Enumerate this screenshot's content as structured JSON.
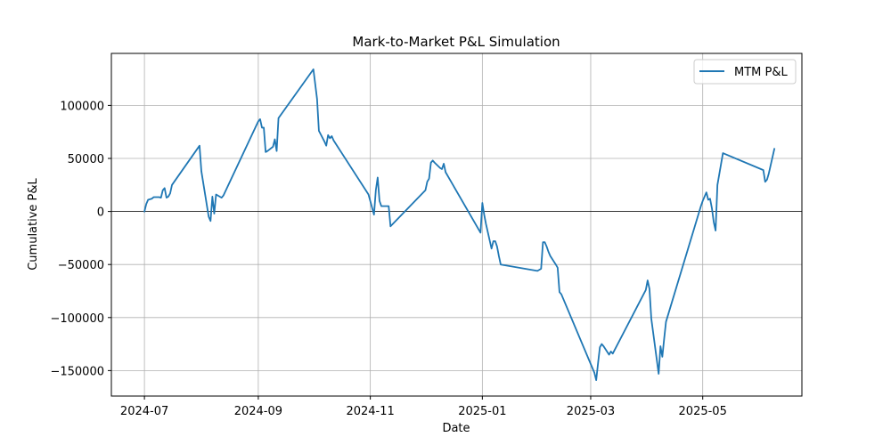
{
  "chart_data": {
    "type": "line",
    "title": "Mark-to-Market P&L Simulation",
    "xlabel": "Date",
    "ylabel": "Cumulative P&L",
    "x_axis_type": "date",
    "xlim": [
      "2024-06-13",
      "2025-06-24"
    ],
    "ylim": [
      -174000,
      149000
    ],
    "x_ticks": [
      {
        "value": "2024-07-01",
        "label": "2024-07"
      },
      {
        "value": "2024-09-01",
        "label": "2024-09"
      },
      {
        "value": "2024-11-01",
        "label": "2024-11"
      },
      {
        "value": "2025-01-01",
        "label": "2025-01"
      },
      {
        "value": "2025-03-01",
        "label": "2025-03"
      },
      {
        "value": "2025-05-01",
        "label": "2025-05"
      }
    ],
    "y_ticks": [
      {
        "value": 100000,
        "label": "100000"
      },
      {
        "value": 50000,
        "label": "50000"
      },
      {
        "value": 0,
        "label": "0"
      },
      {
        "value": -50000,
        "label": "−50000"
      },
      {
        "value": -100000,
        "label": "−100000"
      },
      {
        "value": -150000,
        "label": "−150000"
      }
    ],
    "grid": true,
    "zero_line": true,
    "legend_position": "top-right",
    "series": [
      {
        "name": "MTM P&L",
        "color": "#1f77b4",
        "points": [
          [
            "2024-07-01",
            0
          ],
          [
            "2024-07-02",
            7000
          ],
          [
            "2024-07-03",
            11000
          ],
          [
            "2024-07-05",
            12000
          ],
          [
            "2024-07-06",
            13500
          ],
          [
            "2024-07-08",
            13500
          ],
          [
            "2024-07-09",
            13500
          ],
          [
            "2024-07-10",
            13000
          ],
          [
            "2024-07-11",
            20000
          ],
          [
            "2024-07-12",
            22000
          ],
          [
            "2024-07-13",
            13000
          ],
          [
            "2024-07-14",
            14000
          ],
          [
            "2024-07-15",
            17000
          ],
          [
            "2024-07-16",
            25000
          ],
          [
            "2024-07-31",
            62000
          ],
          [
            "2024-08-01",
            38000
          ],
          [
            "2024-08-05",
            -5000
          ],
          [
            "2024-08-06",
            -9000
          ],
          [
            "2024-08-07",
            14000
          ],
          [
            "2024-08-08",
            -2000
          ],
          [
            "2024-08-09",
            16000
          ],
          [
            "2024-08-12",
            13000
          ],
          [
            "2024-08-13",
            15000
          ],
          [
            "2024-09-01",
            85000
          ],
          [
            "2024-09-02",
            87000
          ],
          [
            "2024-09-03",
            79000
          ],
          [
            "2024-09-04",
            79000
          ],
          [
            "2024-09-05",
            56000
          ],
          [
            "2024-09-06",
            57000
          ],
          [
            "2024-09-09",
            61000
          ],
          [
            "2024-09-10",
            68000
          ],
          [
            "2024-09-11",
            57000
          ],
          [
            "2024-09-12",
            88000
          ],
          [
            "2024-10-01",
            134000
          ],
          [
            "2024-10-03",
            106000
          ],
          [
            "2024-10-04",
            76000
          ],
          [
            "2024-10-07",
            66000
          ],
          [
            "2024-10-08",
            62000
          ],
          [
            "2024-10-09",
            72000
          ],
          [
            "2024-10-10",
            69000
          ],
          [
            "2024-10-11",
            71000
          ],
          [
            "2024-10-12",
            67000
          ],
          [
            "2024-10-31",
            16000
          ],
          [
            "2024-11-03",
            -3000
          ],
          [
            "2024-11-04",
            20000
          ],
          [
            "2024-11-05",
            32000
          ],
          [
            "2024-11-06",
            10000
          ],
          [
            "2024-11-07",
            5000
          ],
          [
            "2024-11-08",
            5000
          ],
          [
            "2024-11-11",
            5000
          ],
          [
            "2024-11-12",
            -14000
          ],
          [
            "2024-12-01",
            20000
          ],
          [
            "2024-12-02",
            28000
          ],
          [
            "2024-12-03",
            31000
          ],
          [
            "2024-12-04",
            46000
          ],
          [
            "2024-12-05",
            48000
          ],
          [
            "2024-12-06",
            46000
          ],
          [
            "2024-12-09",
            41000
          ],
          [
            "2024-12-10",
            40000
          ],
          [
            "2024-12-11",
            45000
          ],
          [
            "2024-12-12",
            37000
          ],
          [
            "2024-12-31",
            -20000
          ],
          [
            "2025-01-01",
            8000
          ],
          [
            "2025-01-02",
            -3000
          ],
          [
            "2025-01-03",
            -12000
          ],
          [
            "2025-01-06",
            -35000
          ],
          [
            "2025-01-07",
            -28000
          ],
          [
            "2025-01-08",
            -28000
          ],
          [
            "2025-01-09",
            -33000
          ],
          [
            "2025-01-10",
            -42000
          ],
          [
            "2025-01-11",
            -50000
          ],
          [
            "2025-01-31",
            -56000
          ],
          [
            "2025-02-02",
            -54000
          ],
          [
            "2025-02-03",
            -29000
          ],
          [
            "2025-02-04",
            -29000
          ],
          [
            "2025-02-05",
            -33000
          ],
          [
            "2025-02-06",
            -38000
          ],
          [
            "2025-02-07",
            -42000
          ],
          [
            "2025-02-10",
            -50000
          ],
          [
            "2025-02-11",
            -53000
          ],
          [
            "2025-02-12",
            -76000
          ],
          [
            "2025-02-13",
            -78000
          ],
          [
            "2025-03-03",
            -152000
          ],
          [
            "2025-03-04",
            -159000
          ],
          [
            "2025-03-05",
            -143000
          ],
          [
            "2025-03-06",
            -128000
          ],
          [
            "2025-03-07",
            -125000
          ],
          [
            "2025-03-08",
            -127000
          ],
          [
            "2025-03-11",
            -135000
          ],
          [
            "2025-03-12",
            -132000
          ],
          [
            "2025-03-13",
            -134000
          ],
          [
            "2025-03-31",
            -74000
          ],
          [
            "2025-04-01",
            -65000
          ],
          [
            "2025-04-02",
            -73000
          ],
          [
            "2025-04-03",
            -101000
          ],
          [
            "2025-04-07",
            -153000
          ],
          [
            "2025-04-08",
            -127000
          ],
          [
            "2025-04-09",
            -137000
          ],
          [
            "2025-04-10",
            -120000
          ],
          [
            "2025-04-11",
            -104000
          ],
          [
            "2025-04-30",
            5000
          ],
          [
            "2025-05-01",
            10000
          ],
          [
            "2025-05-02",
            14000
          ],
          [
            "2025-05-03",
            18000
          ],
          [
            "2025-05-04",
            11000
          ],
          [
            "2025-05-05",
            12000
          ],
          [
            "2025-05-06",
            3000
          ],
          [
            "2025-05-07",
            -10000
          ],
          [
            "2025-05-08",
            -18000
          ],
          [
            "2025-05-09",
            25000
          ],
          [
            "2025-05-12",
            55000
          ],
          [
            "2025-06-03",
            39000
          ],
          [
            "2025-06-04",
            28000
          ],
          [
            "2025-06-05",
            30000
          ],
          [
            "2025-06-06",
            36000
          ],
          [
            "2025-06-09",
            59000
          ]
        ]
      }
    ]
  }
}
